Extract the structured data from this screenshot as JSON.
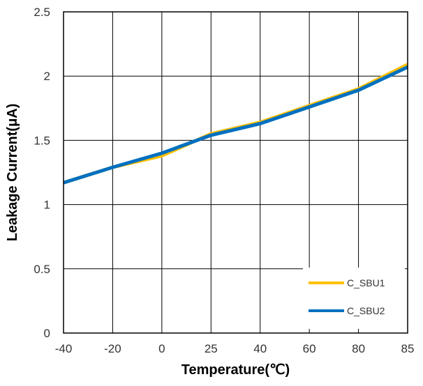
{
  "chart_data": {
    "type": "line",
    "title": "",
    "xlabel": "Temperature(℃)",
    "ylabel": "Leakage Current(μA)",
    "categories": [
      "-40",
      "-20",
      "0",
      "25",
      "40",
      "60",
      "80",
      "85"
    ],
    "ylim": [
      0,
      2.5
    ],
    "yticks": [
      "0",
      "0.5",
      "1",
      "1.5",
      "2",
      "2.5"
    ],
    "grid": true,
    "legend_position": "bottom-right",
    "series": [
      {
        "name": "C_SBU1",
        "color": "#FFC000",
        "values": [
          1.17,
          1.29,
          1.38,
          1.55,
          1.64,
          1.77,
          1.9,
          2.09
        ]
      },
      {
        "name": "C_SBU2",
        "color": "#0070C0",
        "values": [
          1.17,
          1.29,
          1.4,
          1.54,
          1.63,
          1.76,
          1.89,
          2.07
        ]
      }
    ]
  }
}
